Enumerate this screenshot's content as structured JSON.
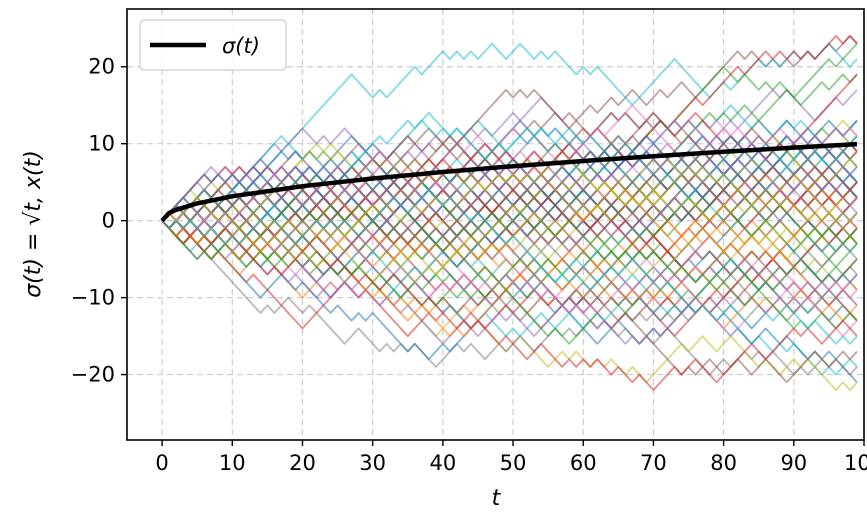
{
  "chart_data": {
    "type": "line",
    "title": "",
    "xlabel": "t",
    "ylabel": "σ(t) = √t, x(t)",
    "xlim": [
      -5,
      100
    ],
    "ylim": [
      -28.5,
      27.5
    ],
    "xticks": [
      "0",
      "10",
      "20",
      "30",
      "40",
      "50",
      "60",
      "70",
      "80",
      "90",
      "100"
    ],
    "yticks": [
      "20",
      "10",
      "0",
      "−10",
      "−20"
    ],
    "grid": true,
    "legend": {
      "placement": "top-left",
      "entries": [
        "σ(t)"
      ]
    },
    "sigma_series": {
      "name": "σ(t)",
      "color": "#000000",
      "x": [
        0,
        1,
        2,
        5,
        10,
        20,
        30,
        40,
        50,
        60,
        70,
        80,
        90,
        99
      ],
      "y": [
        0,
        1,
        1.41,
        2.24,
        3.16,
        4.47,
        5.48,
        6.32,
        7.07,
        7.75,
        8.37,
        8.94,
        9.49,
        9.95
      ]
    },
    "random_walks": {
      "count": 100,
      "steps": 99,
      "x_start": 0,
      "x_end": 99,
      "start_value": 0,
      "approx_range": [
        -26,
        25
      ],
      "colors": [
        "#1f77b4",
        "#ff7f0e",
        "#2ca02c",
        "#d62728",
        "#9467bd",
        "#8c564b",
        "#e377c2",
        "#7f7f7f",
        "#bcbd22",
        "#17becf"
      ]
    }
  }
}
